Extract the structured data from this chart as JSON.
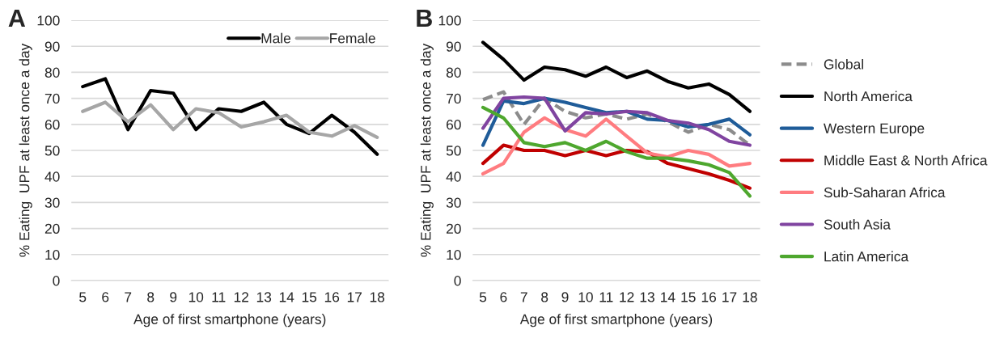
{
  "chart_data": [
    {
      "type": "line",
      "title": "A",
      "xlabel": "Age of first smartphone (years)",
      "ylabel": "% Eating  UPF at least once a day",
      "categories": [
        "5",
        "6",
        "7",
        "8",
        "9",
        "10",
        "11",
        "12",
        "13",
        "14",
        "15",
        "16",
        "17",
        "18"
      ],
      "ylim": [
        0,
        100
      ],
      "yticks": [
        0,
        10,
        20,
        30,
        40,
        50,
        60,
        70,
        80,
        90,
        100
      ],
      "grid": "y",
      "legend": "top right",
      "line_style": "solid",
      "series": [
        {
          "name": "Male",
          "color": "#000000",
          "values": [
            74.5,
            77.5,
            58,
            73,
            72,
            58,
            66,
            65,
            68.5,
            60,
            56.5,
            63.5,
            57,
            48.5
          ]
        },
        {
          "name": "Female",
          "color": "#a6a6a6",
          "values": [
            65,
            68.5,
            61,
            67.5,
            58,
            66,
            64.5,
            59,
            61,
            63.5,
            57,
            55.5,
            59.5,
            55
          ]
        }
      ]
    },
    {
      "type": "line",
      "title": "B",
      "xlabel": "Age of first smartphone (years)",
      "ylabel": "% Eating  UPF at least once a day",
      "categories": [
        "5",
        "6",
        "7",
        "8",
        "9",
        "10",
        "11",
        "12",
        "13",
        "14",
        "15",
        "16",
        "17",
        "18"
      ],
      "ylim": [
        0,
        100
      ],
      "yticks": [
        0,
        10,
        20,
        30,
        40,
        50,
        60,
        70,
        80,
        90,
        100
      ],
      "grid": "y",
      "legend": "right",
      "line_style": "solid",
      "series": [
        {
          "name": "Global",
          "color": "#8c8c8c",
          "line_style": "dashed",
          "values": [
            69.5,
            72.5,
            60,
            70,
            65,
            62.5,
            64,
            62,
            64,
            61,
            57,
            60,
            58,
            52
          ]
        },
        {
          "name": "North America",
          "color": "#000000",
          "values": [
            91.5,
            85,
            77,
            82,
            81,
            78.5,
            82,
            78,
            80.5,
            76.5,
            74,
            75.5,
            71.5,
            65
          ]
        },
        {
          "name": "Western Europe",
          "color": "#1f5c99",
          "values": [
            52,
            69,
            68,
            70,
            68.5,
            66.5,
            64.5,
            65,
            62,
            61.5,
            59,
            60,
            62,
            56
          ]
        },
        {
          "name": "Middle East & North Africa",
          "color": "#c00000",
          "values": [
            45,
            52,
            50,
            50,
            48,
            50,
            48,
            50,
            49.5,
            45,
            43,
            41,
            38.5,
            35.5
          ]
        },
        {
          "name": "Sub-Saharan Africa",
          "color": "#ff7c80",
          "values": [
            41,
            45,
            57,
            62.5,
            58,
            55.5,
            62,
            55.5,
            49,
            47.5,
            50,
            48.5,
            44,
            45
          ]
        },
        {
          "name": "South Asia",
          "color": "#8044a0",
          "values": [
            58.5,
            70,
            70.5,
            70,
            57.5,
            64.5,
            64,
            65,
            64.5,
            61.5,
            60.5,
            58,
            53.5,
            52
          ]
        },
        {
          "name": "Latin America",
          "color": "#4ea72e",
          "values": [
            66.5,
            62.5,
            53,
            51.5,
            53,
            50,
            53.5,
            49.5,
            47,
            47,
            46,
            44.5,
            41.5,
            32.5
          ]
        }
      ]
    }
  ]
}
